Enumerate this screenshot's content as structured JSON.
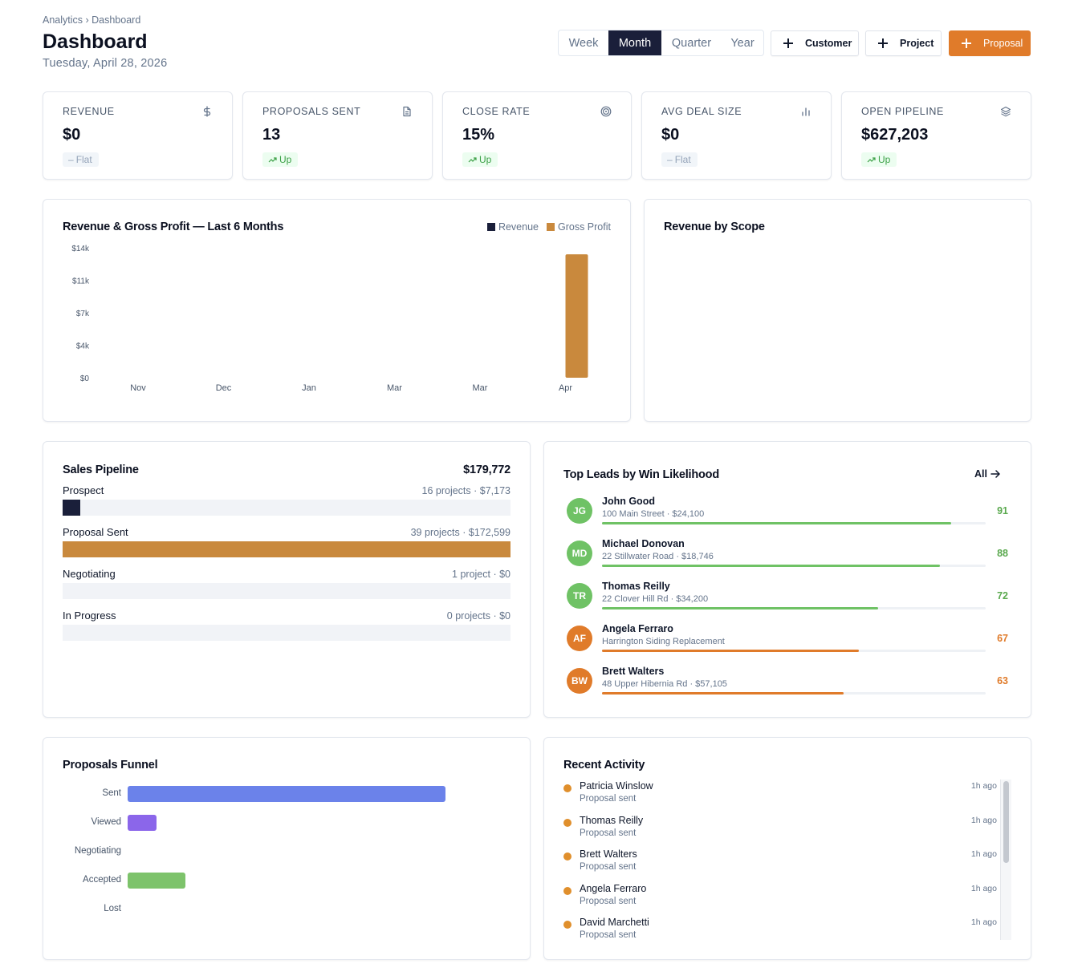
{
  "breadcrumb": "Analytics › Dashboard",
  "header": {
    "title": "Dashboard",
    "date": "Tuesday, April 28, 2026"
  },
  "period": {
    "options": [
      "Week",
      "Month",
      "Quarter",
      "Year"
    ],
    "selected": "Month"
  },
  "actions": {
    "customer": "Customer",
    "project": "Project",
    "proposal": "Proposal"
  },
  "kpis": [
    {
      "label": "REVENUE",
      "value": "$0",
      "trend": "Flat",
      "icon": "dollar-icon"
    },
    {
      "label": "PROPOSALS SENT",
      "value": "13",
      "trend": "Up",
      "icon": "document-icon"
    },
    {
      "label": "CLOSE RATE",
      "value": "15%",
      "trend": "Up",
      "icon": "target-icon"
    },
    {
      "label": "AVG DEAL SIZE",
      "value": "$0",
      "trend": "Flat",
      "icon": "bar-chart-icon"
    },
    {
      "label": "OPEN PIPELINE",
      "value": "$627,203",
      "trend": "Up",
      "icon": "layers-icon"
    }
  ],
  "revenue_chart": {
    "title": "Revenue & Gross Profit — Last 6 Months"
  },
  "scope_chart": {
    "title": "Revenue by Scope"
  },
  "chart_data": [
    {
      "type": "bar",
      "title": "Revenue & Gross Profit — Last 6 Months",
      "categories": [
        "Nov",
        "Dec",
        "Jan",
        "Mar",
        "Mar",
        "Apr"
      ],
      "series": [
        {
          "name": "Revenue",
          "color": "#1a1f3a",
          "values": [
            0,
            0,
            0,
            0,
            0,
            0
          ]
        },
        {
          "name": "Gross Profit",
          "color": "#c9893d",
          "values": [
            0,
            0,
            0,
            0,
            0,
            13300
          ]
        }
      ],
      "y_ticks": [
        "$0",
        "$4k",
        "$7k",
        "$11k",
        "$14k"
      ],
      "ylim": [
        0,
        14000
      ],
      "legend": "top-right",
      "grid": false
    },
    {
      "type": "bar",
      "title": "Proposals Funnel",
      "orientation": "horizontal",
      "categories": [
        "Sent",
        "Viewed",
        "Negotiating",
        "Accepted",
        "Lost"
      ],
      "values": [
        11,
        1,
        0,
        2,
        0
      ],
      "colors": [
        "#6b82ea",
        "#8b66ea",
        "#8b66ea",
        "#7dc36b",
        "#e07b2a"
      ],
      "xlim": [
        0,
        13.5
      ]
    }
  ],
  "pipeline": {
    "title": "Sales Pipeline",
    "total": "$179,772",
    "stages": [
      {
        "label": "Prospect",
        "meta": "16 projects · $7,173",
        "fraction": 0.04,
        "color": "#1a1f3a"
      },
      {
        "label": "Proposal Sent",
        "meta": "39 projects · $172,599",
        "fraction": 1.0,
        "color": "#c9893d"
      },
      {
        "label": "Negotiating",
        "meta": "1 project · $0",
        "fraction": 0,
        "color": "#1a1f3a"
      },
      {
        "label": "In Progress",
        "meta": "0 projects · $0",
        "fraction": 0,
        "color": "#1a1f3a"
      }
    ]
  },
  "leads": {
    "title": "Top Leads by Win Likelihood",
    "all_label": "All",
    "items": [
      {
        "initials": "JG",
        "name": "John Good",
        "sub": "100 Main Street · $24,100",
        "score": "91",
        "fraction": 0.91,
        "color": "#6fc265"
      },
      {
        "initials": "MD",
        "name": "Michael Donovan",
        "sub": "22 Stillwater Road · $18,746",
        "score": "88",
        "fraction": 0.88,
        "color": "#6fc265"
      },
      {
        "initials": "TR",
        "name": "Thomas Reilly",
        "sub": "22 Clover Hill Rd · $34,200",
        "score": "72",
        "fraction": 0.72,
        "color": "#6fc265"
      },
      {
        "initials": "AF",
        "name": "Angela Ferraro",
        "sub": "Harrington Siding Replacement",
        "score": "67",
        "fraction": 0.67,
        "color": "#e07b2a"
      },
      {
        "initials": "BW",
        "name": "Brett Walters",
        "sub": "48 Upper Hibernia Rd · $57,105",
        "score": "63",
        "fraction": 0.63,
        "color": "#e07b2a"
      }
    ]
  },
  "funnel": {
    "title": "Proposals Funnel"
  },
  "activity": {
    "title": "Recent Activity",
    "items": [
      {
        "name": "Patricia Winslow",
        "sub": "Proposal sent",
        "time": "1h ago"
      },
      {
        "name": "Thomas Reilly",
        "sub": "Proposal sent",
        "time": "1h ago"
      },
      {
        "name": "Brett Walters",
        "sub": "Proposal sent",
        "time": "1h ago"
      },
      {
        "name": "Angela Ferraro",
        "sub": "Proposal sent",
        "time": "1h ago"
      },
      {
        "name": "David Marchetti",
        "sub": "Proposal sent",
        "time": "1h ago"
      }
    ]
  }
}
